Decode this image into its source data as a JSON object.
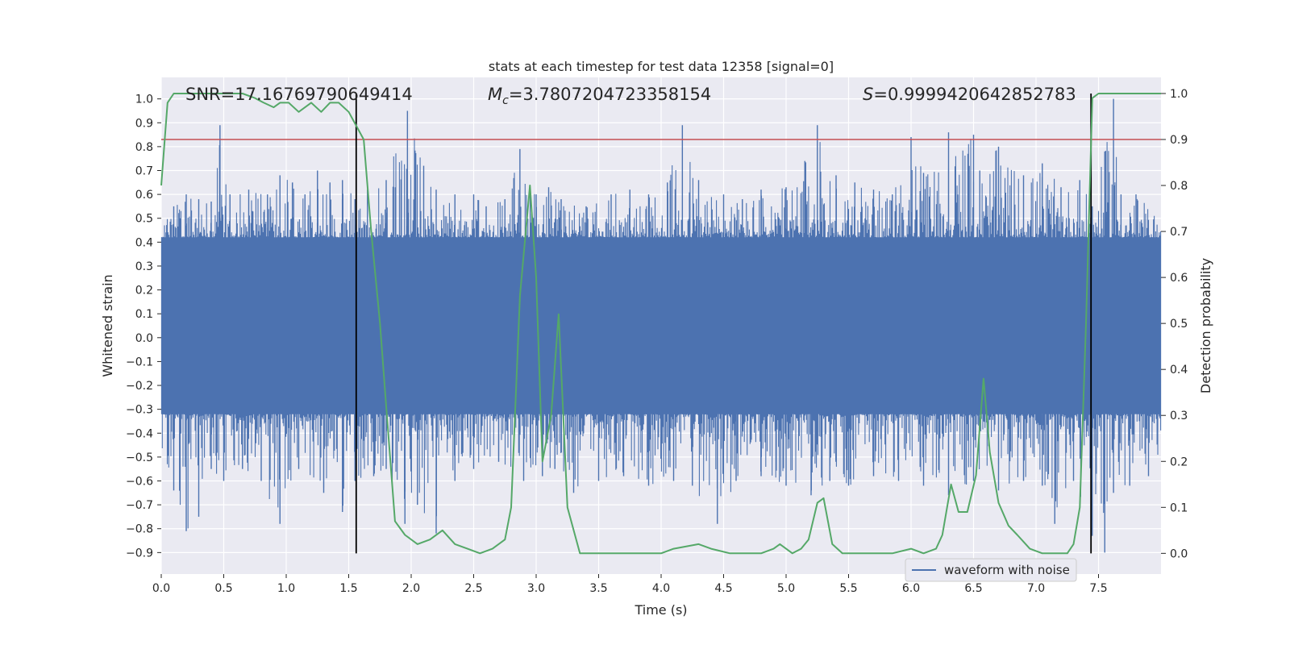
{
  "chart_data": {
    "type": "line",
    "title": "stats at each timestep for test data 12358 [signal=0]",
    "xlabel": "Time (s)",
    "ylabel_left": "Whitened strain",
    "ylabel_right": "Detection probability",
    "xlim": [
      0.0,
      8.0
    ],
    "ylim_left": [
      -0.99,
      1.09
    ],
    "ylim_right": [
      -0.045,
      1.035
    ],
    "x_ticks": [
      0.0,
      0.5,
      1.0,
      1.5,
      2.0,
      2.5,
      3.0,
      3.5,
      4.0,
      4.5,
      5.0,
      5.5,
      6.0,
      6.5,
      7.0,
      7.5
    ],
    "x_tick_labels": [
      "0.0",
      "0.5",
      "1.0",
      "1.5",
      "2.0",
      "2.5",
      "3.0",
      "3.5",
      "4.0",
      "4.5",
      "5.0",
      "5.5",
      "6.0",
      "6.5",
      "7.0",
      "7.5"
    ],
    "y_left_ticks": [
      -0.9,
      -0.8,
      -0.7,
      -0.6,
      -0.5,
      -0.4,
      -0.3,
      -0.2,
      -0.1,
      0.0,
      0.1,
      0.2,
      0.3,
      0.4,
      0.5,
      0.6,
      0.7,
      0.8,
      0.9,
      1.0
    ],
    "y_left_tick_labels": [
      "−0.9",
      "−0.8",
      "−0.7",
      "−0.6",
      "−0.5",
      "−0.4",
      "−0.3",
      "−0.2",
      "−0.1",
      "0.0",
      "0.1",
      "0.2",
      "0.3",
      "0.4",
      "0.5",
      "0.6",
      "0.7",
      "0.8",
      "0.9",
      "1.0"
    ],
    "y_right_ticks": [
      0.0,
      0.1,
      0.2,
      0.3,
      0.4,
      0.5,
      0.6,
      0.7,
      0.8,
      0.9,
      1.0
    ],
    "y_right_tick_labels": [
      "0.0",
      "0.1",
      "0.2",
      "0.3",
      "0.4",
      "0.5",
      "0.6",
      "0.7",
      "0.8",
      "0.9",
      "1.0"
    ],
    "annotations": {
      "snr": "SNR=17.16769790649414",
      "mc_symbol": "M",
      "mc_sub": "c",
      "mc_value": "=3.7807204723358154",
      "s_symbol": "S",
      "s_value": "=0.9999420642852783"
    },
    "threshold_right": 0.9,
    "vertical_lines_x": [
      1.56,
      7.44
    ],
    "legend": {
      "label": "waveform with noise",
      "position": "lower-right"
    },
    "waveform": {
      "name": "waveform with noise",
      "color": "#4c72b0",
      "dense_band": [
        -0.32,
        0.42
      ],
      "peak_envelope": {
        "x": [
          0.0,
          0.1,
          0.2,
          0.3,
          0.4,
          0.47,
          0.55,
          0.7,
          0.85,
          0.95,
          1.05,
          1.15,
          1.25,
          1.35,
          1.45,
          1.55,
          1.65,
          1.8,
          1.97,
          2.1,
          2.2,
          2.35,
          2.5,
          2.6,
          2.75,
          2.87,
          3.0,
          3.1,
          3.2,
          3.4,
          3.6,
          3.75,
          3.9,
          4.05,
          4.17,
          4.3,
          4.5,
          4.65,
          4.8,
          5.0,
          5.15,
          5.25,
          5.4,
          5.55,
          5.7,
          5.85,
          6.0,
          6.1,
          6.3,
          6.5,
          6.55,
          6.7,
          6.9,
          7.05,
          7.2,
          7.35,
          7.45,
          7.55,
          7.62,
          7.68,
          7.8,
          8.0
        ],
        "y": [
          0.45,
          0.55,
          0.6,
          0.58,
          0.57,
          0.89,
          0.6,
          0.62,
          0.6,
          0.68,
          0.65,
          0.6,
          0.7,
          0.65,
          0.66,
          0.58,
          0.62,
          0.66,
          0.95,
          0.72,
          0.62,
          0.6,
          0.6,
          0.55,
          0.58,
          0.79,
          0.6,
          0.63,
          0.58,
          0.55,
          0.6,
          0.62,
          0.6,
          0.65,
          0.89,
          0.66,
          0.6,
          0.58,
          0.62,
          0.63,
          0.74,
          0.89,
          0.68,
          0.65,
          0.62,
          0.6,
          0.84,
          0.69,
          0.86,
          0.85,
          0.7,
          0.8,
          0.68,
          0.73,
          0.63,
          0.66,
          0.55,
          0.78,
          1.0,
          0.6,
          0.6,
          0.5
        ]
      },
      "trough_envelope": {
        "x": [
          0.0,
          0.1,
          0.2,
          0.3,
          0.4,
          0.5,
          0.65,
          0.8,
          0.95,
          1.1,
          1.3,
          1.45,
          1.55,
          1.7,
          1.8,
          1.95,
          2.05,
          2.2,
          2.35,
          2.5,
          2.7,
          2.9,
          3.05,
          3.15,
          3.3,
          3.5,
          3.7,
          3.9,
          4.1,
          4.25,
          4.45,
          4.6,
          4.8,
          5.0,
          5.2,
          5.35,
          5.5,
          5.7,
          5.9,
          6.1,
          6.3,
          6.5,
          6.7,
          6.9,
          7.05,
          7.15,
          7.3,
          7.45,
          7.55,
          7.62,
          7.75,
          7.9,
          8.0
        ],
        "y": [
          -0.6,
          -0.64,
          -0.81,
          -0.75,
          -0.55,
          -0.6,
          -0.55,
          -0.6,
          -0.78,
          -0.55,
          -0.65,
          -0.73,
          -0.6,
          -0.58,
          -0.55,
          -0.78,
          -0.7,
          -0.82,
          -0.6,
          -0.55,
          -0.52,
          -0.6,
          -0.58,
          -0.55,
          -0.65,
          -0.6,
          -0.58,
          -0.62,
          -0.6,
          -0.62,
          -0.78,
          -0.6,
          -0.58,
          -0.62,
          -0.66,
          -0.6,
          -0.62,
          -0.58,
          -0.6,
          -0.62,
          -0.66,
          -0.6,
          -0.64,
          -0.6,
          -0.62,
          -0.78,
          -0.6,
          -0.83,
          -0.9,
          -0.65,
          -0.62,
          -0.58,
          -0.55
        ]
      }
    },
    "detection_probability": {
      "name": "Detection probability",
      "color": "#55a868",
      "x": [
        0.0,
        0.05,
        0.1,
        0.2,
        0.3,
        0.4,
        0.5,
        0.6,
        0.65,
        0.75,
        0.82,
        0.9,
        0.95,
        1.02,
        1.1,
        1.2,
        1.28,
        1.35,
        1.42,
        1.5,
        1.56,
        1.62,
        1.68,
        1.75,
        1.8,
        1.87,
        1.95,
        2.05,
        2.15,
        2.25,
        2.35,
        2.45,
        2.55,
        2.65,
        2.75,
        2.8,
        2.87,
        2.95,
        3.0,
        3.05,
        3.12,
        3.18,
        3.25,
        3.35,
        3.5,
        3.65,
        3.8,
        3.9,
        4.0,
        4.1,
        4.3,
        4.4,
        4.55,
        4.7,
        4.8,
        4.9,
        4.95,
        5.0,
        5.05,
        5.12,
        5.18,
        5.25,
        5.3,
        5.37,
        5.45,
        5.55,
        5.65,
        5.75,
        5.85,
        6.0,
        6.1,
        6.2,
        6.25,
        6.32,
        6.38,
        6.45,
        6.52,
        6.58,
        6.63,
        6.7,
        6.78,
        6.85,
        6.95,
        7.05,
        7.15,
        7.25,
        7.3,
        7.35,
        7.4,
        7.45,
        7.5,
        7.55,
        7.6,
        7.7,
        7.8,
        7.9,
        8.0
      ],
      "y": [
        0.8,
        0.98,
        1.0,
        1.0,
        1.0,
        1.0,
        1.0,
        1.0,
        1.0,
        0.99,
        0.98,
        0.97,
        0.98,
        0.98,
        0.96,
        0.98,
        0.96,
        0.98,
        0.98,
        0.96,
        0.93,
        0.9,
        0.7,
        0.5,
        0.32,
        0.07,
        0.04,
        0.02,
        0.03,
        0.05,
        0.02,
        0.01,
        0.0,
        0.01,
        0.03,
        0.1,
        0.56,
        0.8,
        0.6,
        0.2,
        0.3,
        0.52,
        0.1,
        0.0,
        0.0,
        0.0,
        0.0,
        0.0,
        0.0,
        0.01,
        0.02,
        0.01,
        0.0,
        0.0,
        0.0,
        0.01,
        0.02,
        0.01,
        0.0,
        0.01,
        0.03,
        0.11,
        0.12,
        0.02,
        0.0,
        0.0,
        0.0,
        0.0,
        0.0,
        0.01,
        0.0,
        0.01,
        0.04,
        0.15,
        0.09,
        0.09,
        0.17,
        0.38,
        0.22,
        0.11,
        0.06,
        0.04,
        0.01,
        0.0,
        0.0,
        0.0,
        0.02,
        0.1,
        0.5,
        0.99,
        1.0,
        1.0,
        1.0,
        1.0,
        1.0,
        1.0,
        1.0
      ]
    }
  }
}
